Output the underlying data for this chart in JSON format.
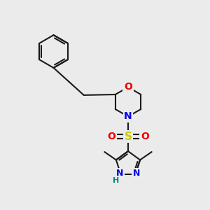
{
  "bg_color": "#ebebeb",
  "bond_color": "#1a1a1a",
  "N_color": "#0000ee",
  "O_color": "#ee0000",
  "S_color": "#cccc00",
  "H_color": "#008888",
  "bond_lw": 1.5,
  "font_size": 9,
  "xlim": [
    0,
    10
  ],
  "ylim": [
    0,
    10
  ]
}
